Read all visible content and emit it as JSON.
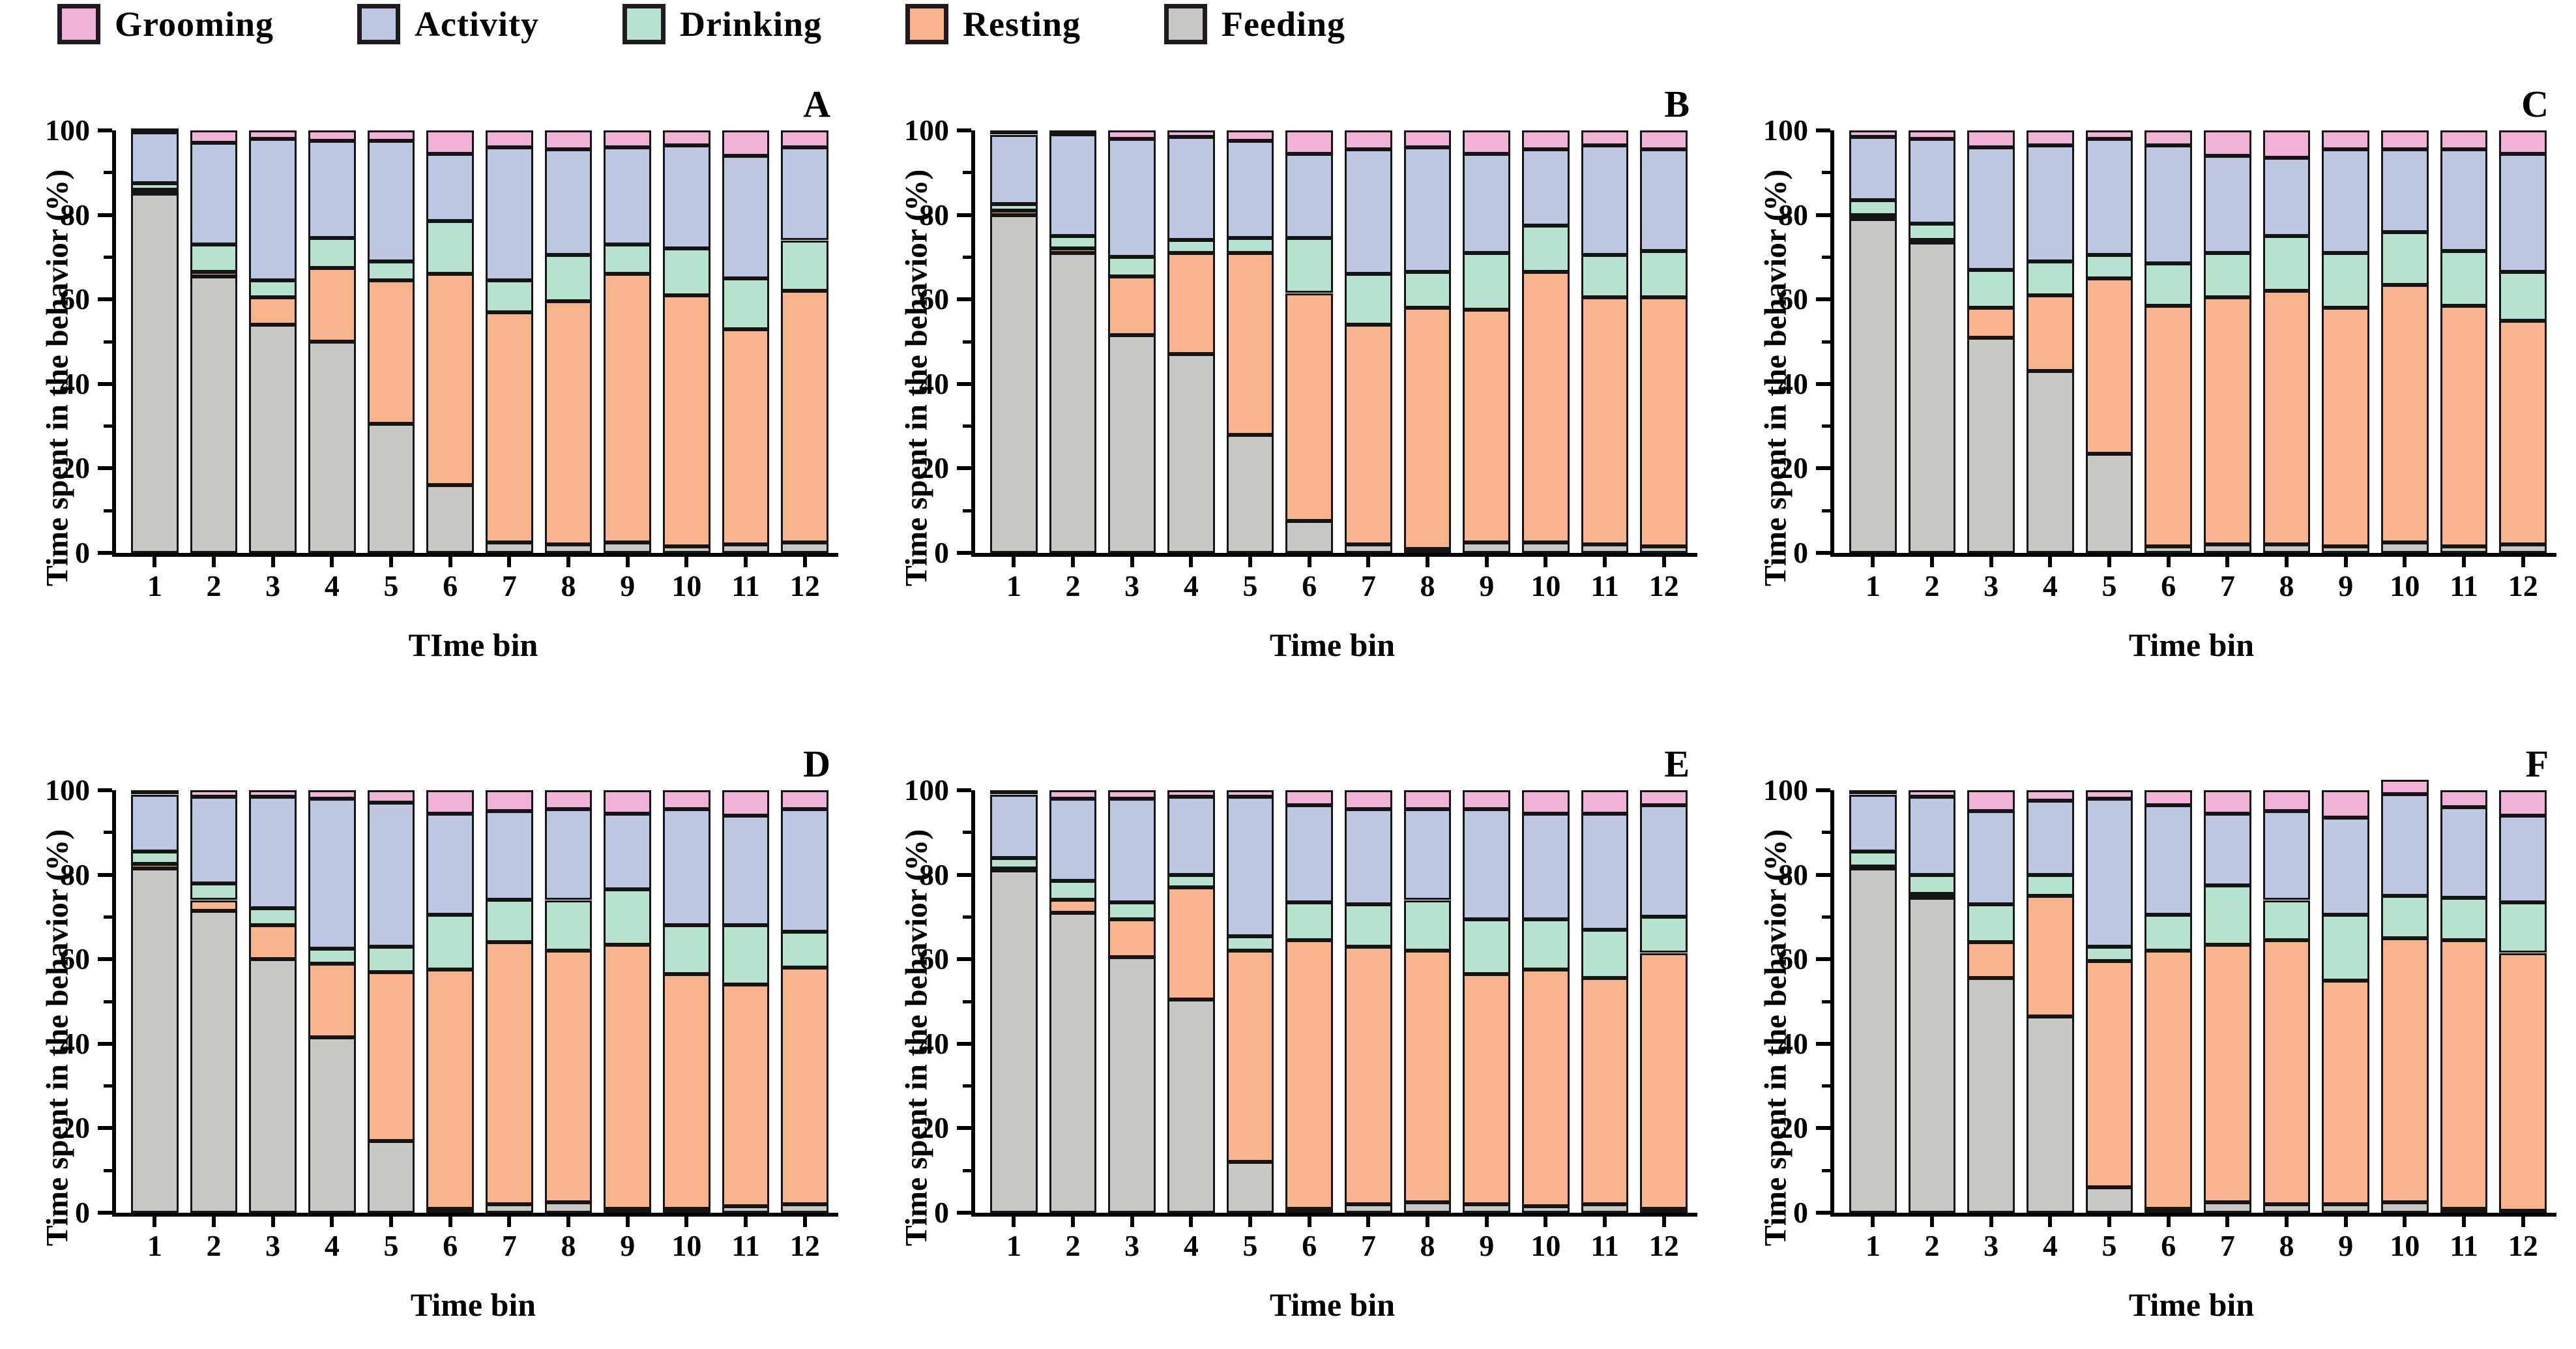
{
  "figure": {
    "background": "#ffffff",
    "border_color": "#151515",
    "panel_letters": [
      "A",
      "B",
      "C",
      "D",
      "E",
      "F"
    ]
  },
  "legend": {
    "items": [
      {
        "label": "Grooming",
        "color": "#f0b3d7"
      },
      {
        "label": "Activity",
        "color": "#bec7e2"
      },
      {
        "label": "Drinking",
        "color": "#b7e2cd"
      },
      {
        "label": "Resting",
        "color": "#fab48d"
      },
      {
        "label": "Feeding",
        "color": "#c8c8c4"
      }
    ]
  },
  "chart_data": {
    "type": "bar",
    "stacked": true,
    "ylim": [
      0,
      100
    ],
    "yticks_major": [
      0,
      20,
      40,
      60,
      80,
      100
    ],
    "yticks_minor": [
      10,
      30,
      50,
      70,
      90
    ],
    "grid": false,
    "legend_position": "top-left",
    "stack_order_bottom_to_top": [
      "Feeding",
      "Resting",
      "Drinking",
      "Activity",
      "Grooming"
    ],
    "colors": {
      "Grooming": "#f0b3d7",
      "Activity": "#bec7e2",
      "Drinking": "#b7e2cd",
      "Resting": "#fab48d",
      "Feeding": "#c8c8c4"
    },
    "panels": [
      {
        "label": "A",
        "xlabel": "TIme bin",
        "ylabel": "Time spent in the behavior (%)",
        "categories": [
          "1",
          "2",
          "3",
          "4",
          "5",
          "6",
          "7",
          "8",
          "9",
          "10",
          "11",
          "12"
        ],
        "series": [
          {
            "name": "Feeding",
            "values": [
              85,
              65.5,
              54,
              50,
              30.5,
              16,
              2.5,
              2,
              2.5,
              1.5,
              2,
              2.5
            ]
          },
          {
            "name": "Resting",
            "values": [
              1,
              1,
              6.5,
              17.5,
              34,
              50,
              54.5,
              57.5,
              63.5,
              59.5,
              51,
              59.5
            ]
          },
          {
            "name": "Drinking",
            "values": [
              1.5,
              6.5,
              4,
              7,
              4.5,
              12.5,
              7.5,
              11,
              7,
              11,
              12,
              12
            ]
          },
          {
            "name": "Activity",
            "values": [
              12,
              24,
              33.5,
              23,
              28.5,
              16,
              31.5,
              25,
              23,
              24.5,
              29,
              22
            ]
          },
          {
            "name": "Grooming",
            "values": [
              0.5,
              3,
              2,
              2.5,
              2.5,
              5.5,
              4,
              4.5,
              4,
              3.5,
              6,
              4
            ]
          }
        ]
      },
      {
        "label": "B",
        "xlabel": "Time bin",
        "ylabel": "Time spent in the behavior (%)",
        "categories": [
          "1",
          "2",
          "3",
          "4",
          "5",
          "6",
          "7",
          "8",
          "9",
          "10",
          "11",
          "12"
        ],
        "series": [
          {
            "name": "Feeding",
            "values": [
              80,
              71,
              51.5,
              47,
              28,
              7.5,
              2,
              1,
              2.5,
              2.5,
              2,
              1.5
            ]
          },
          {
            "name": "Resting",
            "values": [
              1,
              1,
              14,
              24,
              43,
              54,
              52,
              57,
              55,
              64,
              58.5,
              59
            ]
          },
          {
            "name": "Drinking",
            "values": [
              1.5,
              3,
              4.5,
              3,
              3.5,
              13,
              12,
              8.5,
              13.5,
              11,
              10,
              11
            ]
          },
          {
            "name": "Activity",
            "values": [
              16.5,
              24,
              28,
              24.5,
              23,
              20,
              29.5,
              29.5,
              23.5,
              18,
              26,
              24
            ]
          },
          {
            "name": "Grooming",
            "values": [
              1,
              1,
              2,
              1.5,
              2.5,
              5.5,
              4.5,
              4,
              5.5,
              4.5,
              3.5,
              4.5
            ]
          }
        ]
      },
      {
        "label": "C",
        "xlabel": "Time bin",
        "ylabel": "Time spent in the behavior (%)",
        "categories": [
          "1",
          "2",
          "3",
          "4",
          "5",
          "6",
          "7",
          "8",
          "9",
          "10",
          "11",
          "12"
        ],
        "series": [
          {
            "name": "Feeding",
            "values": [
              79,
              73.5,
              51,
              43,
              23.5,
              1.5,
              2,
              2,
              1.5,
              2.5,
              1.5,
              2
            ]
          },
          {
            "name": "Resting",
            "values": [
              1,
              0.5,
              7,
              18,
              41.5,
              57,
              58.5,
              60,
              56.5,
              61,
              57,
              53
            ]
          },
          {
            "name": "Drinking",
            "values": [
              3.5,
              4,
              9,
              8,
              5.5,
              10,
              10.5,
              13,
              13,
              12.5,
              13,
              11.5
            ]
          },
          {
            "name": "Activity",
            "values": [
              15,
              20,
              29,
              27.5,
              27.5,
              28,
              23,
              18.5,
              24.5,
              19.5,
              24,
              28
            ]
          },
          {
            "name": "Grooming",
            "values": [
              1.5,
              2,
              4,
              3.5,
              2,
              3.5,
              6,
              6.5,
              4.5,
              4.5,
              4.5,
              5.5
            ]
          }
        ]
      },
      {
        "label": "D",
        "xlabel": "Time bin",
        "ylabel": "Time spent in the behavior (%)",
        "categories": [
          "1",
          "2",
          "3",
          "4",
          "5",
          "6",
          "7",
          "8",
          "9",
          "10",
          "11",
          "12"
        ],
        "series": [
          {
            "name": "Feeding",
            "values": [
              81.5,
              71.5,
              60,
              41.5,
              17,
              1,
              2,
              2.5,
              1,
              1,
              1.5,
              2
            ]
          },
          {
            "name": "Resting",
            "values": [
              1,
              2.5,
              8,
              17.5,
              40,
              56.5,
              62,
              59.5,
              62.5,
              55.5,
              52.5,
              56
            ]
          },
          {
            "name": "Drinking",
            "values": [
              3,
              4,
              4,
              3.5,
              6,
              13,
              10,
              12,
              13,
              11.5,
              14,
              8.5
            ]
          },
          {
            "name": "Activity",
            "values": [
              13.5,
              20.5,
              26.5,
              35.5,
              34,
              24,
              21,
              21.5,
              18,
              27.5,
              26,
              29
            ]
          },
          {
            "name": "Grooming",
            "values": [
              1,
              1.5,
              1.5,
              2,
              3,
              5.5,
              5,
              4.5,
              5.5,
              4.5,
              6,
              4.5
            ]
          }
        ]
      },
      {
        "label": "E",
        "xlabel": "Time bin",
        "ylabel": "Time spent in the behavior (%)",
        "categories": [
          "1",
          "2",
          "3",
          "4",
          "5",
          "6",
          "7",
          "8",
          "9",
          "10",
          "11",
          "12"
        ],
        "series": [
          {
            "name": "Feeding",
            "values": [
              81,
              71,
              60.5,
              50.5,
              12,
              1,
              2,
              2.5,
              2,
              1.5,
              2,
              1
            ]
          },
          {
            "name": "Resting",
            "values": [
              0.5,
              3,
              9,
              26.5,
              50,
              63.5,
              61,
              59.5,
              54.5,
              56,
              53.5,
              60.5
            ]
          },
          {
            "name": "Drinking",
            "values": [
              2.5,
              4.5,
              4,
              3,
              3.5,
              9,
              10,
              12,
              13,
              12,
              11.5,
              8.5
            ]
          },
          {
            "name": "Activity",
            "values": [
              15,
              19.5,
              24.5,
              18.5,
              33,
              23,
              22.5,
              21.5,
              26,
              25,
              27.5,
              26.5
            ]
          },
          {
            "name": "Grooming",
            "values": [
              1,
              2,
              2,
              1.5,
              1.5,
              3.5,
              4.5,
              4.5,
              4.5,
              5.5,
              5.5,
              3.5
            ]
          }
        ]
      },
      {
        "label": "F",
        "xlabel": "Time bin",
        "ylabel": "Time spent in the behavior (%)",
        "categories": [
          "1",
          "2",
          "3",
          "4",
          "5",
          "6",
          "7",
          "8",
          "9",
          "10",
          "11",
          "12"
        ],
        "series": [
          {
            "name": "Feeding",
            "values": [
              81.5,
              74.5,
              55.5,
              46.5,
              6,
              1,
              2.5,
              2,
              2,
              2.5,
              1,
              0.5
            ]
          },
          {
            "name": "Resting",
            "values": [
              0.5,
              1,
              8.5,
              28.5,
              53.5,
              61,
              61,
              62.5,
              53,
              62.5,
              63.5,
              61
            ]
          },
          {
            "name": "Drinking",
            "values": [
              3.5,
              4.5,
              9,
              5,
              3.5,
              8.5,
              14,
              9.5,
              15.5,
              10,
              10,
              12
            ]
          },
          {
            "name": "Activity",
            "values": [
              13.5,
              18.5,
              22,
              17.5,
              35,
              26,
              17,
              21,
              23,
              24,
              21.5,
              20.5
            ]
          },
          {
            "name": "Grooming",
            "values": [
              1,
              1.5,
              5,
              2.5,
              2,
              3.5,
              5.5,
              5,
              6.5,
              3.5,
              4,
              6
            ]
          }
        ]
      }
    ]
  }
}
